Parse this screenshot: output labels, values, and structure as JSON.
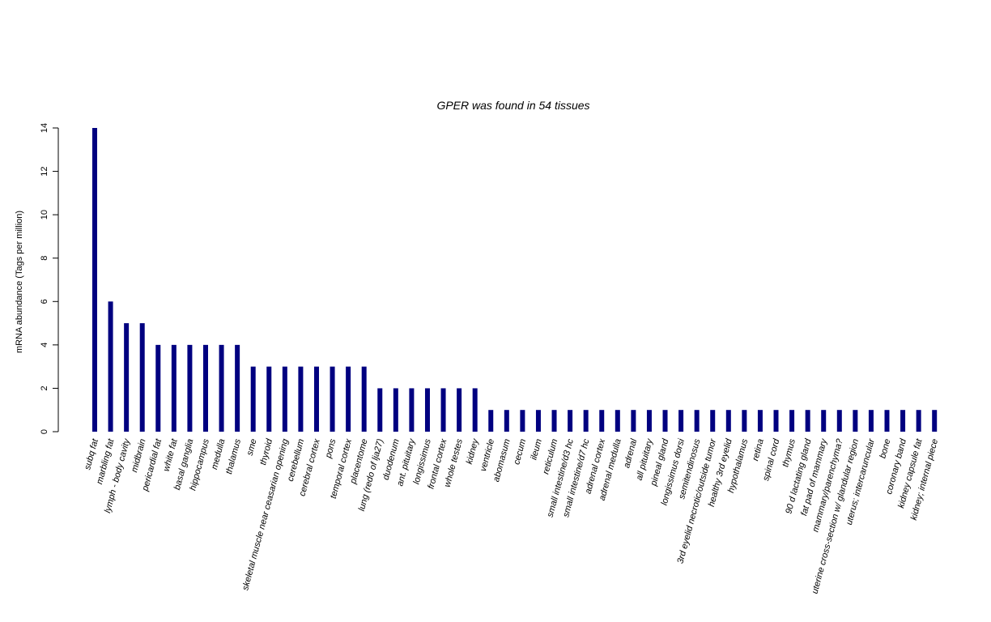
{
  "chart_data": {
    "type": "bar",
    "title": "GPER  was found in  54  tissues",
    "xlabel": "",
    "ylabel": "mRNA abundance (Tags per million)",
    "ylim": [
      0,
      14
    ],
    "yticks": [
      "0",
      "2",
      "4",
      "6",
      "8",
      "10",
      "12",
      "14"
    ],
    "grid": false,
    "bar_color": "#000080",
    "categories": [
      "subq fat",
      "marbling fat",
      "lymph - body cavity",
      "midbrain",
      "pericardial fat",
      "white fat",
      "basal ganglia",
      "hippocampus",
      "medulla",
      "thalamus",
      "sme",
      "thyroid",
      "skeletal muscle near ceasarian opening",
      "cerebellum",
      "cerebral cortex",
      "pons",
      "temporal cortex",
      "placentome",
      "lung (redo of lja27)",
      "duodenum",
      "ant. pituitary",
      "longissimus",
      "frontal cortex",
      "whole testes",
      "kidney",
      "ventricle",
      "abomasum",
      "cecum",
      "ileum",
      "reticulum",
      "small intestine/d3 hc",
      "small intestine/d7 hc",
      "adrenal cortex",
      "adrenal medulla",
      "adrenal",
      "all pituitary",
      "pineal gland",
      "longissimus dorsi",
      "semitendinosus",
      "3rd eyelid necrotic/outside tumor",
      "healthy 3rd eyelid",
      "hypothalamus",
      "retina",
      "spinal cord",
      "thymus",
      "90 d lactating gland",
      "fat pad of mammary",
      "mammary/parenchyma?",
      "uterine cross-section w/ glandular region",
      "uterus; intercaruncular",
      "bone",
      "coronary band",
      "kidney capsule fat",
      "kidney; internal piece"
    ],
    "values": [
      14,
      6,
      5,
      5,
      4,
      4,
      4,
      4,
      4,
      4,
      3,
      3,
      3,
      3,
      3,
      3,
      3,
      3,
      2,
      2,
      2,
      2,
      2,
      2,
      2,
      1,
      1,
      1,
      1,
      1,
      1,
      1,
      1,
      1,
      1,
      1,
      1,
      1,
      1,
      1,
      1,
      1,
      1,
      1,
      1,
      1,
      1,
      1,
      1,
      1,
      1,
      1,
      1,
      1
    ]
  }
}
